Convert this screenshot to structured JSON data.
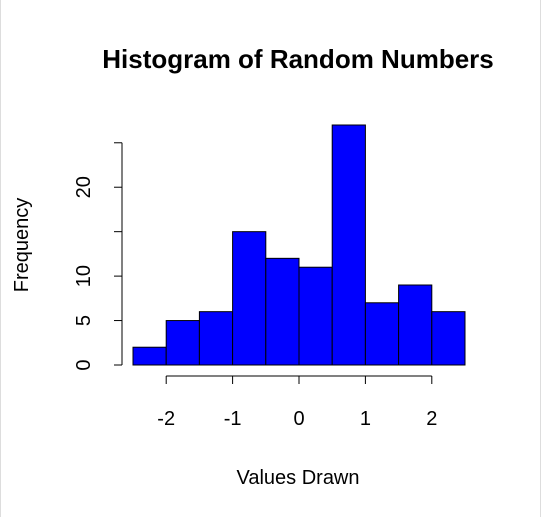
{
  "chart_data": {
    "type": "histogram",
    "title": "Histogram of Random Numbers",
    "xlabel": "Values Drawn",
    "ylabel": "Frequency",
    "bin_edges": [
      -2.5,
      -2.0,
      -1.5,
      -1.0,
      -0.5,
      0.0,
      0.5,
      1.0,
      1.5,
      2.0,
      2.5
    ],
    "counts": [
      2,
      5,
      6,
      15,
      12,
      11,
      27,
      7,
      9,
      6
    ],
    "x_ticks": [
      -2,
      -1,
      0,
      1,
      2
    ],
    "x_tick_labels": [
      "-2",
      "-1",
      "0",
      "1",
      "2"
    ],
    "y_ticks": [
      0,
      5,
      10,
      15,
      20,
      25
    ],
    "y_tick_labels": [
      "0",
      "5",
      "10",
      "",
      "20",
      ""
    ],
    "xlim": [
      -2.5,
      2.5
    ],
    "ylim": [
      0,
      27
    ],
    "grid": false,
    "bar_color": "#0000ff",
    "bar_border_color": "#000000"
  }
}
